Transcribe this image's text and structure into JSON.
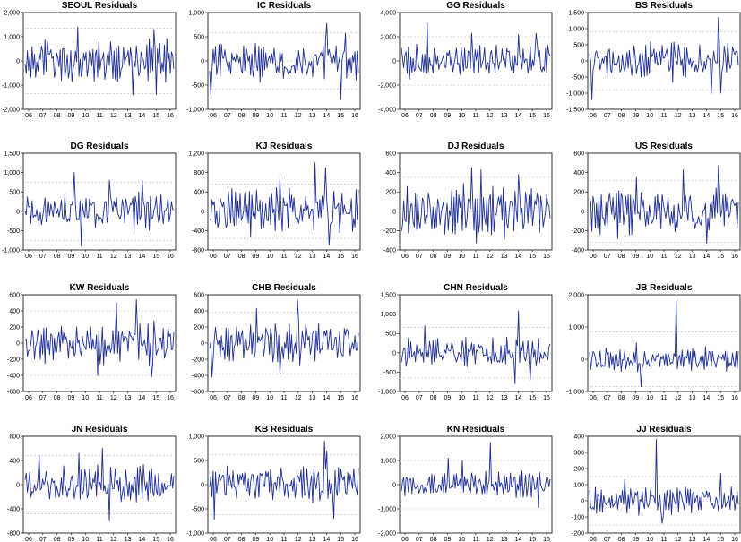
{
  "chart_data": [
    {
      "type": "line",
      "title": "SEOUL Residuals",
      "yticks": [
        "-2,000",
        "-1,000",
        "0",
        "1,000",
        "2,000"
      ],
      "ylim": [
        -2000,
        2000
      ],
      "ref": [
        -1350,
        0,
        1350
      ],
      "seed": 1,
      "amp": 560,
      "spikes": [
        [
          45,
          1400
        ],
        [
          92,
          -1400
        ],
        [
          110,
          1300
        ],
        [
          112,
          -1400
        ]
      ]
    },
    {
      "type": "line",
      "title": "IC Residuals",
      "yticks": [
        "-1,000",
        "-500",
        "0",
        "500",
        "1,000"
      ],
      "ylim": [
        -1000,
        1000
      ],
      "ref": [
        -580,
        0,
        580
      ],
      "seed": 2,
      "amp": 260,
      "spikes": [
        [
          1,
          -700
        ],
        [
          100,
          780
        ],
        [
          112,
          -800
        ],
        [
          116,
          570
        ]
      ]
    },
    {
      "type": "line",
      "title": "GG Residuals",
      "yticks": [
        "-4,000",
        "-2,000",
        "0",
        "2,000",
        "4,000"
      ],
      "ylim": [
        -4000,
        4000
      ],
      "ref": [
        -2000,
        0,
        2000
      ],
      "seed": 3,
      "amp": 900,
      "spikes": [
        [
          22,
          3200
        ],
        [
          60,
          2300
        ],
        [
          100,
          2200
        ],
        [
          115,
          2300
        ]
      ]
    },
    {
      "type": "line",
      "title": "BS Residuals",
      "yticks": [
        "-1,500",
        "-1,000",
        "-500",
        "0",
        "500",
        "1,000",
        "1,500"
      ],
      "ylim": [
        -1500,
        1500
      ],
      "ref": [
        -900,
        0,
        900
      ],
      "seed": 4,
      "amp": 380,
      "spikes": [
        [
          2,
          -1200
        ],
        [
          110,
          1350
        ],
        [
          104,
          -1000
        ],
        [
          112,
          -1000
        ]
      ]
    },
    {
      "type": "line",
      "title": "DG Residuals",
      "yticks": [
        "-1,000",
        "-500",
        "0",
        "500",
        "1,000",
        "1,500"
      ],
      "ylim": [
        -1000,
        1500
      ],
      "ref": [
        -750,
        0,
        750
      ],
      "seed": 5,
      "amp": 320,
      "spikes": [
        [
          42,
          1000
        ],
        [
          48,
          -900
        ],
        [
          72,
          800
        ],
        [
          100,
          800
        ]
      ]
    },
    {
      "type": "line",
      "title": "KJ Residuals",
      "yticks": [
        "-800",
        "-400",
        "0",
        "400",
        "800",
        "1,200"
      ],
      "ylim": [
        -800,
        1200
      ],
      "ref": [
        -560,
        0,
        560
      ],
      "seed": 6,
      "amp": 300,
      "spikes": [
        [
          90,
          1000
        ],
        [
          99,
          900
        ],
        [
          102,
          -700
        ],
        [
          60,
          700
        ]
      ]
    },
    {
      "type": "line",
      "title": "DJ Residuals",
      "yticks": [
        "-400",
        "-200",
        "0",
        "200",
        "400",
        "600"
      ],
      "ylim": [
        -400,
        600
      ],
      "ref": [
        -350,
        0,
        350
      ],
      "seed": 7,
      "amp": 170,
      "spikes": [
        [
          60,
          450
        ],
        [
          64,
          -330
        ],
        [
          68,
          430
        ],
        [
          100,
          380
        ]
      ]
    },
    {
      "type": "line",
      "title": "US Residuals",
      "yticks": [
        "-400",
        "-200",
        "0",
        "200",
        "400",
        "600"
      ],
      "ylim": [
        -400,
        600
      ],
      "ref": [
        -320,
        0,
        320
      ],
      "seed": 8,
      "amp": 170,
      "spikes": [
        [
          110,
          470
        ],
        [
          80,
          430
        ],
        [
          40,
          350
        ],
        [
          100,
          -330
        ]
      ]
    },
    {
      "type": "line",
      "title": "KW Residuals",
      "yticks": [
        "-600",
        "-400",
        "-200",
        "0",
        "200",
        "400",
        "600"
      ],
      "ylim": [
        -600,
        600
      ],
      "ref": [
        -400,
        0,
        400
      ],
      "seed": 9,
      "amp": 160,
      "spikes": [
        [
          95,
          540
        ],
        [
          78,
          500
        ],
        [
          108,
          -420
        ],
        [
          62,
          -400
        ]
      ]
    },
    {
      "type": "line",
      "title": "CHB Residuals",
      "yticks": [
        "-600",
        "-400",
        "-200",
        "0",
        "200",
        "400",
        "600"
      ],
      "ylim": [
        -600,
        600
      ],
      "ref": [
        -380,
        0,
        380
      ],
      "seed": 10,
      "amp": 170,
      "spikes": [
        [
          75,
          540
        ],
        [
          60,
          -380
        ],
        [
          40,
          430
        ],
        [
          2,
          -420
        ]
      ]
    },
    {
      "type": "line",
      "title": "CHN Residuals",
      "yticks": [
        "-1,000",
        "-500",
        "0",
        "500",
        "1,000",
        "1,500"
      ],
      "ylim": [
        -1000,
        1500
      ],
      "ref": [
        -650,
        0,
        650
      ],
      "seed": 11,
      "amp": 250,
      "spikes": [
        [
          100,
          1080
        ],
        [
          97,
          -800
        ],
        [
          20,
          700
        ],
        [
          110,
          -700
        ]
      ]
    },
    {
      "type": "line",
      "title": "JB Residuals",
      "yticks": [
        "-1,000",
        "0",
        "1,000",
        "2,000"
      ],
      "ylim": [
        -1000,
        2000
      ],
      "ref": [
        -850,
        0,
        850
      ],
      "seed": 12,
      "amp": 230,
      "spikes": [
        [
          74,
          1850
        ],
        [
          75,
          -300
        ],
        [
          44,
          -850
        ],
        [
          40,
          500
        ]
      ]
    },
    {
      "type": "line",
      "title": "JN Residuals",
      "yticks": [
        "-800",
        "-400",
        "0",
        "400",
        "800"
      ],
      "ylim": [
        -800,
        800
      ],
      "ref": [
        -480,
        0,
        480
      ],
      "seed": 13,
      "amp": 200,
      "spikes": [
        [
          66,
          600
        ],
        [
          72,
          -600
        ],
        [
          12,
          490
        ],
        [
          46,
          520
        ]
      ]
    },
    {
      "type": "line",
      "title": "KB Residuals",
      "yticks": [
        "-1,000",
        "-500",
        "0",
        "500",
        "1,000"
      ],
      "ylim": [
        -1000,
        1000
      ],
      "ref": [
        -620,
        0,
        620
      ],
      "seed": 14,
      "amp": 250,
      "spikes": [
        [
          98,
          900
        ],
        [
          100,
          700
        ],
        [
          106,
          -700
        ],
        [
          4,
          -720
        ]
      ]
    },
    {
      "type": "line",
      "title": "KN Residuals",
      "yticks": [
        "-2,000",
        "-1,000",
        "0",
        "1,000",
        "2,000"
      ],
      "ylim": [
        -2000,
        2000
      ],
      "ref": [
        -1000,
        0,
        1000
      ],
      "seed": 15,
      "amp": 330,
      "spikes": [
        [
          76,
          1750
        ],
        [
          117,
          -950
        ],
        [
          40,
          1100
        ],
        [
          52,
          1000
        ]
      ]
    },
    {
      "type": "line",
      "title": "JJ Residuals",
      "yticks": [
        "-200",
        "-100",
        "0",
        "100",
        "200",
        "300",
        "400"
      ],
      "ylim": [
        -200,
        400
      ],
      "ref": [
        -150,
        0,
        150
      ],
      "seed": 16,
      "amp": 55,
      "spikes": [
        [
          57,
          380
        ],
        [
          112,
          170
        ],
        [
          62,
          -140
        ],
        [
          30,
          130
        ]
      ]
    }
  ],
  "xticks": [
    "06",
    "07",
    "08",
    "09",
    "10",
    "11",
    "12",
    "13",
    "14",
    "15",
    "16"
  ],
  "colors": {
    "line": "#1f2f96",
    "ref": "#bbbbbb",
    "frame": "#000000"
  }
}
